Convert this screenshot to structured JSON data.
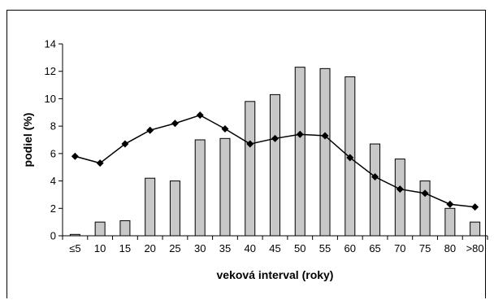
{
  "chart_data": {
    "type": "bar",
    "xlabel": "veková interval (roky)",
    "ylabel": "podiel (%)",
    "ylim": [
      0,
      14
    ],
    "yticks": [
      0,
      2,
      4,
      6,
      8,
      10,
      12,
      14
    ],
    "grid": false,
    "legend": "none",
    "categories": [
      "≤5",
      "10",
      "15",
      "20",
      "25",
      "30",
      "35",
      "40",
      "45",
      "50",
      "55",
      "60",
      "65",
      "70",
      "75",
      "80",
      ">80"
    ],
    "series": [
      {
        "kind": "bar",
        "color": "#c8c8c8",
        "values": [
          0.1,
          1.0,
          1.1,
          4.2,
          4.0,
          7.0,
          7.1,
          9.8,
          10.3,
          12.3,
          12.2,
          11.6,
          6.7,
          5.6,
          4.0,
          2.0,
          1.0
        ]
      },
      {
        "kind": "line",
        "color": "#000000",
        "marker": "diamond",
        "values": [
          5.8,
          5.3,
          6.7,
          7.7,
          8.2,
          8.8,
          7.8,
          6.7,
          7.1,
          7.4,
          7.3,
          5.7,
          4.3,
          3.4,
          3.1,
          2.3,
          2.1
        ]
      }
    ]
  }
}
